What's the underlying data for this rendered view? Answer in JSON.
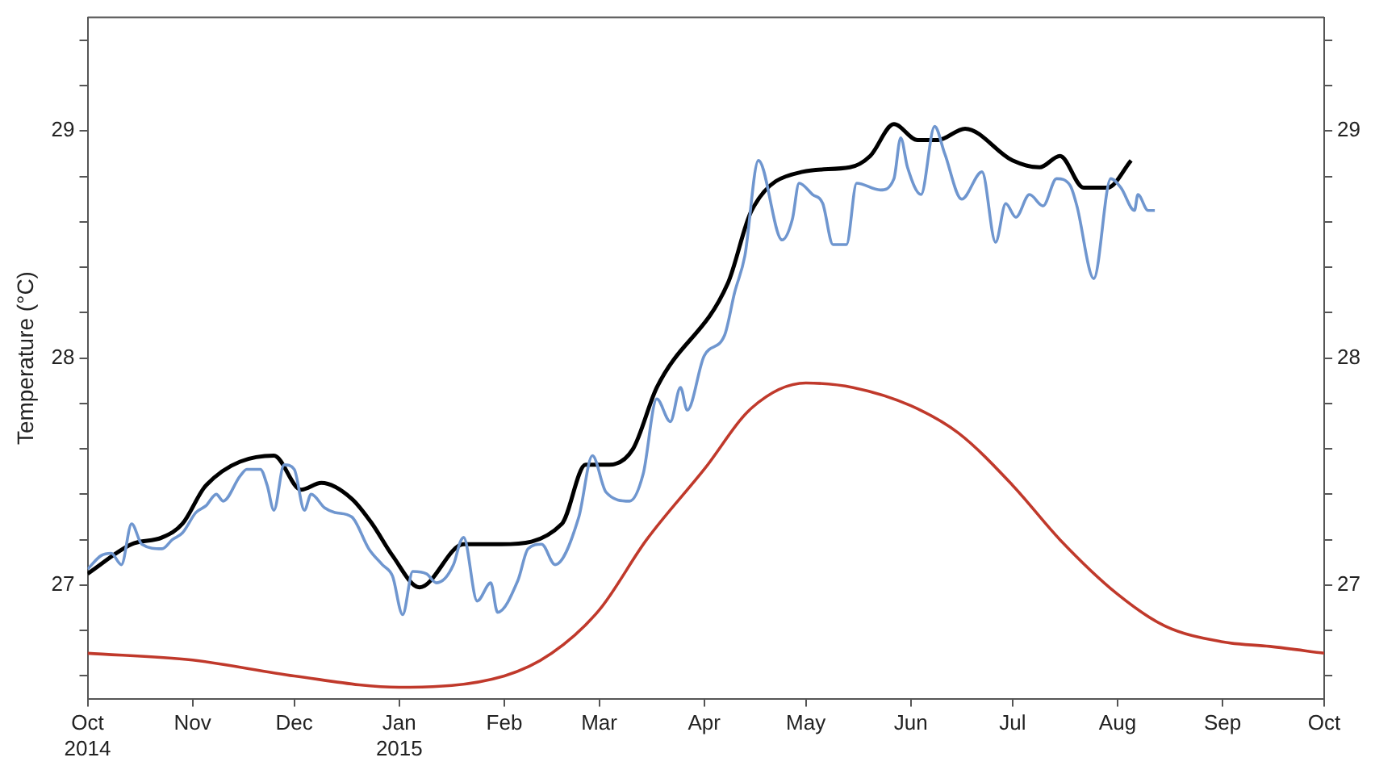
{
  "chart_data": {
    "type": "line",
    "ylabel": "Temperature (°C)",
    "xlim": [
      "2014-10-01",
      "2015-10-01"
    ],
    "xticks": [
      {
        "value": "2014-10-01",
        "label": "Oct\n2014"
      },
      {
        "value": "2014-11-01",
        "label": "Nov"
      },
      {
        "value": "2014-12-01",
        "label": "Dec"
      },
      {
        "value": "2015-01-01",
        "label": "Jan\n2015"
      },
      {
        "value": "2015-02-01",
        "label": "Feb"
      },
      {
        "value": "2015-03-01",
        "label": "Mar"
      },
      {
        "value": "2015-04-01",
        "label": "Apr"
      },
      {
        "value": "2015-05-01",
        "label": "May"
      },
      {
        "value": "2015-06-01",
        "label": "Jun"
      },
      {
        "value": "2015-07-01",
        "label": "Jul"
      },
      {
        "value": "2015-08-01",
        "label": "Aug"
      },
      {
        "value": "2015-09-01",
        "label": "Sep"
      },
      {
        "value": "2015-10-01",
        "label": "Oct"
      }
    ],
    "ylim": [
      26.5,
      29.5
    ],
    "yticks": [
      {
        "value": 26.6,
        "label": null
      },
      {
        "value": 26.8,
        "label": null
      },
      27,
      {
        "value": 27.2,
        "label": null
      },
      {
        "value": 27.4,
        "label": null
      },
      {
        "value": 27.6,
        "label": null
      },
      {
        "value": 27.8,
        "label": null
      },
      28,
      {
        "value": 28.2,
        "label": null
      },
      {
        "value": 28.4,
        "label": null
      },
      {
        "value": 28.6,
        "label": null
      },
      {
        "value": 28.8,
        "label": null
      },
      29,
      {
        "value": 29.2,
        "label": null
      },
      {
        "value": 29.4,
        "label": null
      }
    ],
    "y2lim": [
      26.5,
      29.5
    ],
    "y2ticks": [
      {
        "value": 26.6,
        "label": null
      },
      {
        "value": 26.8,
        "label": null
      },
      27,
      {
        "value": 27.2,
        "label": null
      },
      {
        "value": 27.4,
        "label": null
      },
      {
        "value": 27.6,
        "label": null
      },
      {
        "value": 27.8,
        "label": null
      },
      28,
      {
        "value": 28.2,
        "label": null
      },
      {
        "value": 28.4,
        "label": null
      },
      {
        "value": 28.6,
        "label": null
      },
      {
        "value": 28.8,
        "label": null
      },
      29,
      {
        "value": 29.2,
        "label": null
      },
      {
        "value": 29.4,
        "label": null
      }
    ],
    "marker": "none",
    "line_style": "solid",
    "legend": false,
    "series": [
      {
        "color": "#c0392b",
        "x": [
          "2014-10-01",
          "2014-11-01",
          "2014-12-01",
          "2015-01-01",
          "2015-02-01",
          "2015-02-15",
          "2015-03-01",
          "2015-03-15",
          "2015-04-01",
          "2015-04-15",
          "2015-05-01",
          "2015-05-15",
          "2015-06-01",
          "2015-06-15",
          "2015-07-01",
          "2015-07-15",
          "2015-08-01",
          "2015-08-15",
          "2015-09-01",
          "2015-09-15",
          "2015-10-01"
        ],
        "values": [
          26.7,
          26.67,
          26.6,
          26.55,
          26.6,
          26.7,
          26.89,
          27.2,
          27.51,
          27.78,
          27.89,
          27.87,
          27.79,
          27.67,
          27.44,
          27.2,
          26.96,
          26.82,
          26.75,
          26.73,
          26.7
        ]
      },
      {
        "color": "#6f96cf",
        "x": [
          "2014-10-01",
          "2014-10-05",
          "2014-10-08",
          "2014-10-11",
          "2014-10-14",
          "2014-10-17",
          "2014-10-23",
          "2014-10-26",
          "2014-10-29",
          "2014-11-02",
          "2014-11-05",
          "2014-11-08",
          "2014-11-10",
          "2014-11-15",
          "2014-11-17",
          "2014-11-21",
          "2014-11-23",
          "2014-11-25",
          "2014-11-28",
          "2014-12-01",
          "2014-12-04",
          "2014-12-06",
          "2014-12-10",
          "2014-12-13",
          "2014-12-18",
          "2014-12-23",
          "2014-12-27",
          "2014-12-30",
          "2015-01-02",
          "2015-01-05",
          "2015-01-09",
          "2015-01-12",
          "2015-01-17",
          "2015-01-19",
          "2015-01-20",
          "2015-01-24",
          "2015-01-28",
          "2015-01-30",
          "2015-02-05",
          "2015-02-08",
          "2015-02-12",
          "2015-02-16",
          "2015-02-23",
          "2015-02-27",
          "2015-03-03",
          "2015-03-10",
          "2015-03-14",
          "2015-03-18",
          "2015-03-22",
          "2015-03-25",
          "2015-03-27",
          "2015-04-01",
          "2015-04-07",
          "2015-04-10",
          "2015-04-13",
          "2015-04-17",
          "2015-04-24",
          "2015-04-27",
          "2015-04-29",
          "2015-05-03",
          "2015-05-06",
          "2015-05-09",
          "2015-05-13",
          "2015-05-16",
          "2015-05-23",
          "2015-05-27",
          "2015-05-29",
          "2015-05-31",
          "2015-06-04",
          "2015-06-08",
          "2015-06-11",
          "2015-06-16",
          "2015-06-22",
          "2015-06-26",
          "2015-06-29",
          "2015-07-02",
          "2015-07-06",
          "2015-07-10",
          "2015-07-14",
          "2015-07-18",
          "2015-07-20",
          "2015-07-25",
          "2015-07-30",
          "2015-08-02",
          "2015-08-06",
          "2015-08-07",
          "2015-08-10",
          "2015-08-12"
        ],
        "values": [
          27.07,
          27.13,
          27.14,
          27.09,
          27.27,
          27.18,
          27.16,
          27.2,
          27.23,
          27.32,
          27.35,
          27.4,
          27.37,
          27.48,
          27.51,
          27.51,
          27.44,
          27.33,
          27.53,
          27.51,
          27.33,
          27.4,
          27.34,
          27.32,
          27.3,
          27.16,
          27.09,
          27.04,
          26.87,
          27.06,
          27.05,
          27.01,
          27.09,
          27.19,
          27.21,
          26.93,
          27.01,
          26.88,
          27.02,
          27.16,
          27.18,
          27.09,
          27.3,
          27.57,
          27.41,
          27.37,
          27.49,
          27.82,
          27.72,
          27.87,
          27.77,
          28.01,
          28.1,
          28.29,
          28.45,
          28.87,
          28.52,
          28.61,
          28.77,
          28.72,
          28.68,
          28.5,
          28.5,
          28.77,
          28.74,
          28.79,
          28.97,
          28.84,
          28.72,
          29.02,
          28.9,
          28.7,
          28.82,
          28.51,
          28.68,
          28.62,
          28.72,
          28.67,
          28.79,
          28.76,
          28.67,
          28.35,
          28.79,
          28.75,
          28.65,
          28.72,
          28.65,
          28.65
        ]
      },
      {
        "color": "#000000",
        "x": [
          "2014-10-01",
          "2014-10-14",
          "2014-10-23",
          "2014-10-29",
          "2014-11-05",
          "2014-11-25",
          "2014-12-03",
          "2014-12-09",
          "2014-12-18",
          "2014-12-24",
          "2014-12-30",
          "2015-01-07",
          "2015-01-20",
          "2015-01-31",
          "2015-02-18",
          "2015-02-25",
          "2015-03-04",
          "2015-03-11",
          "2015-03-18",
          "2015-04-08",
          "2015-04-15",
          "2015-04-30",
          "2015-05-14",
          "2015-05-20",
          "2015-05-27",
          "2015-06-03",
          "2015-06-09",
          "2015-06-17",
          "2015-07-01",
          "2015-07-09",
          "2015-07-15",
          "2015-07-22",
          "2015-07-29",
          "2015-08-05"
        ],
        "values": [
          27.05,
          27.18,
          27.21,
          27.27,
          27.44,
          27.57,
          27.42,
          27.45,
          27.38,
          27.27,
          27.13,
          26.99,
          27.18,
          27.18,
          27.27,
          27.53,
          27.53,
          27.6,
          27.87,
          28.33,
          28.65,
          28.82,
          28.84,
          28.89,
          29.03,
          28.96,
          28.96,
          29.01,
          28.87,
          28.84,
          28.89,
          28.75,
          28.75,
          28.87
        ]
      }
    ]
  }
}
